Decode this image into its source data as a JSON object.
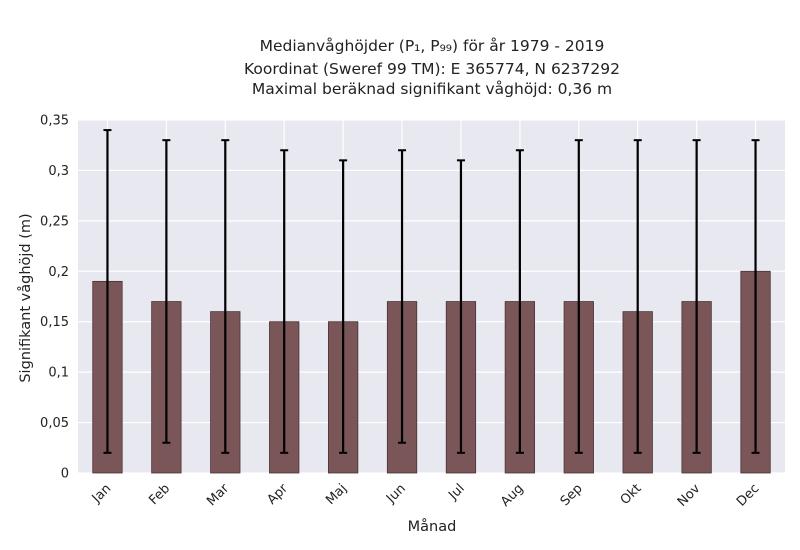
{
  "chart_data": {
    "type": "bar",
    "title_lines": [
      "Medianvåghöjder (P₁, P₉₉) för år 1979 - 2019",
      "Koordinat (Sweref 99 TM): E 365774, N 6237292",
      "Maximal beräknad signifikant våghöjd: 0,36 m"
    ],
    "xlabel": "Månad",
    "ylabel": "Signifikant våghöjd (m)",
    "categories": [
      "Jan",
      "Feb",
      "Mar",
      "Apr",
      "Maj",
      "Jun",
      "Jul",
      "Aug",
      "Sep",
      "Okt",
      "Nov",
      "Dec"
    ],
    "values": [
      0.19,
      0.17,
      0.16,
      0.15,
      0.15,
      0.17,
      0.17,
      0.17,
      0.17,
      0.16,
      0.17,
      0.2
    ],
    "p1": [
      0.02,
      0.03,
      0.02,
      0.02,
      0.02,
      0.03,
      0.02,
      0.02,
      0.02,
      0.02,
      0.02,
      0.02
    ],
    "p99": [
      0.34,
      0.33,
      0.33,
      0.32,
      0.31,
      0.32,
      0.31,
      0.32,
      0.33,
      0.33,
      0.33,
      0.33
    ],
    "ylim": [
      0,
      0.35
    ],
    "yticks": [
      0,
      0.05,
      0.1,
      0.15,
      0.2,
      0.25,
      0.3,
      0.35
    ],
    "ytick_labels": [
      "0",
      "0,05",
      "0,1",
      "0,15",
      "0,2",
      "0,25",
      "0,3",
      "0,35"
    ],
    "grid": true,
    "colors": {
      "bar": "#7a5658",
      "bar_edge": "#4a3334",
      "errorbar": "#000000",
      "plot_bg": "#e8e8f1",
      "grid": "#ffffff"
    }
  }
}
